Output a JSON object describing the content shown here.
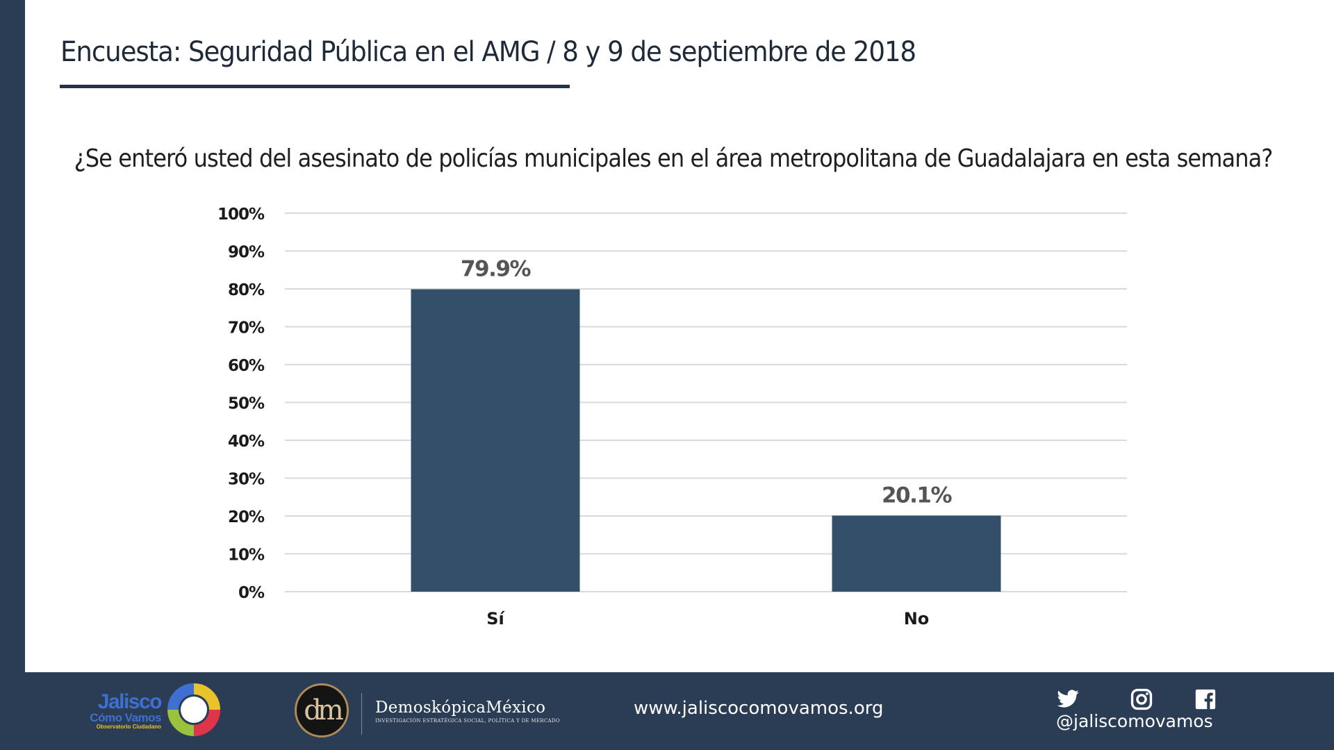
{
  "header": {
    "title": "Encuesta: Seguridad Pública en el AMG / 8 y 9 de septiembre de 2018",
    "question": "¿Se enteró usted del asesinato de policías municipales en el área metropolitana de Guadalajara en esta semana?"
  },
  "chart_data": {
    "type": "bar",
    "categories": [
      "Sí",
      "No"
    ],
    "values": [
      79.9,
      20.1
    ],
    "value_labels": [
      "79.9%",
      "20.1%"
    ],
    "yticks": [
      "0%",
      "10%",
      "20%",
      "30%",
      "40%",
      "50%",
      "60%",
      "70%",
      "80%",
      "90%",
      "100%"
    ],
    "ylim": [
      0,
      100
    ],
    "grid": true,
    "legend": "none",
    "bar_color": "#344f69"
  },
  "footer": {
    "logo_jcv": {
      "line1": "Jalisco",
      "line2": "Cómo Vamos",
      "line3": "Observatorio Ciudadano"
    },
    "logo_dm": {
      "monogram": "dm",
      "name": "DemoskópicaMéxico",
      "tagline": "INVESTIGACIÓN ESTRATÉGICA SOCIAL, POLÍTICA Y DE MERCADO"
    },
    "website": "www.jaliscocomovamos.org",
    "social_icons": [
      "twitter-icon",
      "instagram-icon",
      "facebook-icon"
    ],
    "handle": "@jaliscomovamos"
  },
  "colors": {
    "sidebar": "#2a3d55",
    "footer": "#2a3d55",
    "bars": "#344f69",
    "title_rule": "#26334a"
  }
}
